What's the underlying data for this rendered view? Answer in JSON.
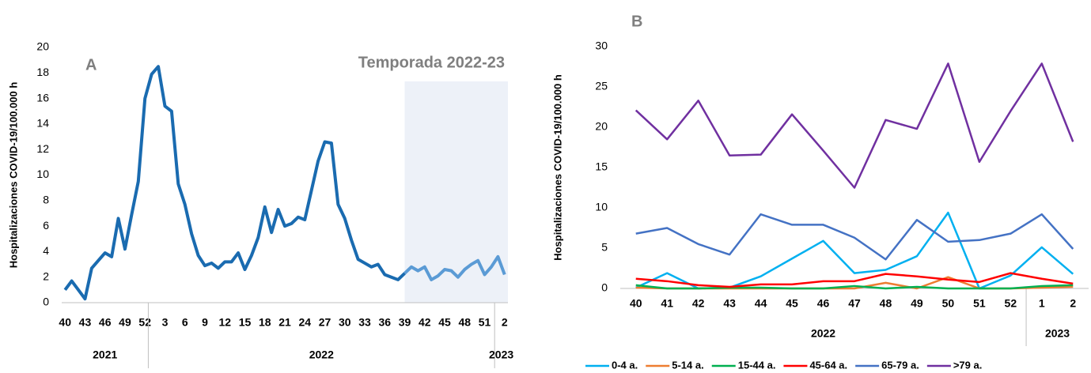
{
  "chart_data": [
    {
      "type": "line",
      "panel_label": "A",
      "y_label": "Hospitalizaciones COVID-19/100.000 h",
      "categories": [
        "40",
        null,
        null,
        "43",
        null,
        null,
        "46",
        null,
        null,
        "49",
        null,
        null,
        "52",
        null,
        null,
        "3",
        null,
        null,
        "6",
        null,
        null,
        "9",
        null,
        null,
        "12",
        null,
        null,
        "15",
        null,
        null,
        "18",
        null,
        null,
        "21",
        null,
        null,
        "24",
        null,
        null,
        "27",
        null,
        null,
        "30",
        null,
        null,
        "33",
        null,
        null,
        "36",
        null,
        null,
        "39",
        null,
        null,
        "42",
        null,
        null,
        "45",
        null,
        null,
        "48",
        null,
        null,
        "51",
        null,
        null,
        "2"
      ],
      "groups": [
        {
          "label": "2021",
          "weeks": 13
        },
        {
          "label": "2022",
          "weeks": 52
        },
        {
          "label": "2023",
          "weeks": 2
        }
      ],
      "series": [
        {
          "color": "#1a6bb0",
          "values": [
            1.0,
            1.7,
            1.0,
            0.3,
            2.7,
            3.3,
            3.9,
            3.6,
            6.6,
            4.2,
            6.9,
            9.5,
            16.0,
            17.9,
            18.5,
            15.4,
            15.0,
            9.3,
            7.7,
            5.4,
            3.7,
            2.9,
            3.1,
            2.7,
            3.2,
            3.2,
            3.9,
            2.6,
            3.7,
            5.1,
            7.5,
            5.5,
            7.3,
            6.0,
            6.2,
            6.7,
            6.5,
            8.8,
            11.1,
            12.6,
            12.5,
            7.7,
            6.6,
            4.9,
            3.4,
            3.1,
            2.8,
            3.0,
            2.2,
            2.0,
            1.8,
            2.3,
            2.8,
            2.5,
            2.8,
            1.8,
            2.1,
            2.6,
            2.5,
            2.0,
            2.6,
            3.0,
            3.3,
            2.2,
            2.8,
            3.6,
            2.2
          ]
        }
      ],
      "highlight": {
        "label": "Temporada 2022-23",
        "from": "39",
        "fill": "#edf1f8",
        "line_color": "#5b9bd5"
      },
      "ylim": [
        0,
        20
      ],
      "yticks": [
        0,
        2,
        4,
        6,
        8,
        10,
        12,
        14,
        16,
        18,
        20
      ]
    },
    {
      "type": "line",
      "panel_label": "B",
      "y_label": "Hospitalizaciones COVID-19/100.000 h",
      "categories": [
        "40",
        "41",
        "42",
        "43",
        "44",
        "45",
        "46",
        "47",
        "48",
        "49",
        "50",
        "51",
        "52",
        "1",
        "2"
      ],
      "groups": [
        {
          "label": "2022",
          "weeks": 13
        },
        {
          "label": "2023",
          "weeks": 2
        }
      ],
      "series": [
        {
          "name": "0-4 a.",
          "color": "#00b0f0",
          "values": [
            0.1,
            1.9,
            0.0,
            0.1,
            1.5,
            3.7,
            5.9,
            1.9,
            2.3,
            4.0,
            9.4,
            0.0,
            1.6,
            5.1,
            1.8
          ]
        },
        {
          "name": "5-14 a.",
          "color": "#ed7d31",
          "values": [
            0.1,
            0.0,
            0.0,
            0.0,
            0.0,
            0.0,
            0.0,
            0.0,
            0.7,
            0.0,
            1.4,
            0.0,
            0.0,
            0.1,
            0.2
          ]
        },
        {
          "name": "15-44 a.",
          "color": "#00b050",
          "values": [
            0.4,
            0.0,
            0.0,
            0.1,
            0.1,
            0.0,
            0.0,
            0.3,
            0.0,
            0.2,
            0.0,
            0.0,
            0.0,
            0.3,
            0.4
          ]
        },
        {
          "name": "45-64 a.",
          "color": "#ff0000",
          "values": [
            1.2,
            0.9,
            0.4,
            0.2,
            0.5,
            0.5,
            0.9,
            0.9,
            1.8,
            1.5,
            1.1,
            0.8,
            1.9,
            1.2,
            0.6
          ]
        },
        {
          "name": "65-79 a.",
          "color": "#4472c4",
          "values": [
            6.8,
            7.5,
            5.5,
            4.2,
            9.2,
            7.9,
            7.9,
            6.3,
            3.6,
            8.5,
            5.8,
            6.0,
            6.8,
            9.2,
            4.9
          ]
        },
        {
          "name": ">79 a.",
          "color": "#7030a0",
          "values": [
            22.1,
            18.5,
            23.3,
            16.5,
            16.6,
            21.6,
            17.1,
            12.5,
            20.9,
            19.8,
            27.9,
            15.7,
            22.0,
            27.9,
            18.2
          ]
        }
      ],
      "ylim": [
        0,
        30
      ],
      "yticks": [
        0,
        5,
        10,
        15,
        20,
        25,
        30
      ],
      "legend": "bottom"
    }
  ]
}
